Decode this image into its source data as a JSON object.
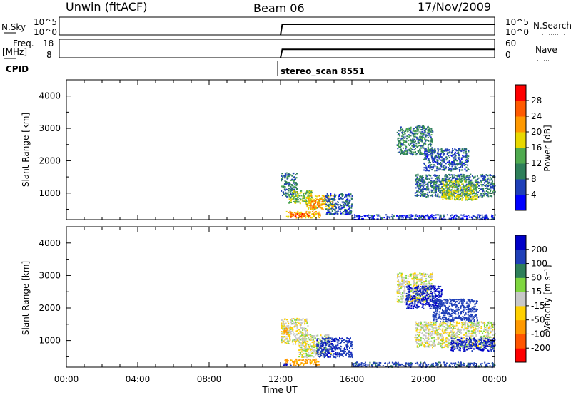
{
  "header": {
    "radar": "Unwin (fitACF)",
    "beam": "Beam 06",
    "date": "17/Nov/2009"
  },
  "strip": {
    "nsky_label": "N.Sky",
    "nsky_ticks": [
      "10^5",
      "10^0"
    ],
    "nsearch_label": "N.Search",
    "nsearch_ticks": [
      "10^5",
      "10^0"
    ],
    "freq_label": "Freq.",
    "freq_unit": "[MHz]",
    "freq_ticks": [
      "18",
      "8"
    ],
    "nave_label": "Nave",
    "nave_ticks": [
      "60",
      "0"
    ],
    "cpid_label": "CPID",
    "cpid_value": "stereo_scan 8551"
  },
  "colors": {
    "power": [
      "#0000ff",
      "#1f3fb8",
      "#2e7f5a",
      "#4faa4f",
      "#e8d800",
      "#ff9900",
      "#ff5a00",
      "#ff0000"
    ],
    "velocity": [
      "#ff0000",
      "#ff5500",
      "#ff9900",
      "#ffd000",
      "#c8c8c8",
      "#7fd63f",
      "#2e7f5a",
      "#1f3fb8",
      "#0000c8"
    ]
  },
  "chart_data": [
    {
      "type": "heatmap",
      "name": "power",
      "ylabel": "Slant Range [km]",
      "ylim": [
        180,
        4500
      ],
      "xlim": [
        0,
        24
      ],
      "yticks": [
        "1000",
        "2000",
        "3000",
        "4000"
      ],
      "colorbar_label": "Power [dB]",
      "colorbar_ticks": [
        "4",
        "8",
        "12",
        "16",
        "20",
        "24",
        "28"
      ],
      "colorbar_range": [
        0,
        32
      ],
      "echo_regions": [
        {
          "x": [
            12.0,
            12.9
          ],
          "y": [
            900,
            1650
          ],
          "v": 9
        },
        {
          "x": [
            12.4,
            13.8
          ],
          "y": [
            700,
            1100
          ],
          "v": 15
        },
        {
          "x": [
            13.4,
            15.0
          ],
          "y": [
            500,
            950
          ],
          "v": 19
        },
        {
          "x": [
            13.6,
            14.3
          ],
          "y": [
            550,
            800
          ],
          "v": 24
        },
        {
          "x": [
            12.3,
            14.2
          ],
          "y": [
            250,
            450
          ],
          "v": 21
        },
        {
          "x": [
            12.5,
            13.6
          ],
          "y": [
            280,
            380
          ],
          "v": 27
        },
        {
          "x": [
            14.5,
            16.0
          ],
          "y": [
            350,
            1000
          ],
          "v": 7
        },
        {
          "x": [
            18.5,
            20.5
          ],
          "y": [
            2200,
            3100
          ],
          "v": 10
        },
        {
          "x": [
            20.0,
            22.5
          ],
          "y": [
            1700,
            2400
          ],
          "v": 7
        },
        {
          "x": [
            19.5,
            24.0
          ],
          "y": [
            900,
            1600
          ],
          "v": 9
        },
        {
          "x": [
            21.0,
            23.0
          ],
          "y": [
            800,
            1400
          ],
          "v": 16
        },
        {
          "x": [
            16.0,
            24.0
          ],
          "y": [
            200,
            350
          ],
          "v": 5
        }
      ]
    },
    {
      "type": "heatmap",
      "name": "velocity",
      "ylabel": "Slant Range [km]",
      "xlabel": "Time UT",
      "ylim": [
        180,
        4500
      ],
      "xlim": [
        0,
        24
      ],
      "yticks": [
        "1000",
        "2000",
        "3000",
        "4000"
      ],
      "xticks": [
        "00:00",
        "04:00",
        "08:00",
        "12:00",
        "16:00",
        "20:00",
        "00:00"
      ],
      "colorbar_label": "Velocity [m s⁻¹]",
      "colorbar_ticks": [
        "200",
        "100",
        "50",
        "15",
        "-15",
        "-50",
        "-100",
        "-200"
      ],
      "echo_regions": [
        {
          "x": [
            12.0,
            13.5
          ],
          "y": [
            900,
            1700
          ],
          "v": -10
        },
        {
          "x": [
            13.0,
            14.8
          ],
          "y": [
            500,
            1200
          ],
          "v": 0
        },
        {
          "x": [
            14.0,
            16.0
          ],
          "y": [
            500,
            1100
          ],
          "v": 180
        },
        {
          "x": [
            12.1,
            12.4
          ],
          "y": [
            1200,
            1400
          ],
          "v": -60
        },
        {
          "x": [
            12.2,
            14.2
          ],
          "y": [
            250,
            450
          ],
          "v": -70
        },
        {
          "x": [
            12.0,
            12.6
          ],
          "y": [
            250,
            300
          ],
          "v": 220
        },
        {
          "x": [
            18.5,
            20.5
          ],
          "y": [
            2200,
            3100
          ],
          "v": 0
        },
        {
          "x": [
            19.0,
            21.0
          ],
          "y": [
            2000,
            2700
          ],
          "v": 200
        },
        {
          "x": [
            20.5,
            23.0
          ],
          "y": [
            1600,
            2300
          ],
          "v": 150
        },
        {
          "x": [
            19.5,
            24.0
          ],
          "y": [
            800,
            1600
          ],
          "v": 0
        },
        {
          "x": [
            21.5,
            24.0
          ],
          "y": [
            700,
            1100
          ],
          "v": 200
        },
        {
          "x": [
            16.0,
            24.0
          ],
          "y": [
            200,
            350
          ],
          "v": 120
        }
      ]
    },
    {
      "type": "line",
      "name": "nsky",
      "x": [
        12.0,
        12.1,
        24.0
      ],
      "y": [
        0,
        3,
        3
      ]
    },
    {
      "type": "line",
      "name": "freq",
      "x": [
        12.0,
        12.1,
        24.0
      ],
      "y": [
        8,
        12.5,
        12.5
      ]
    }
  ]
}
